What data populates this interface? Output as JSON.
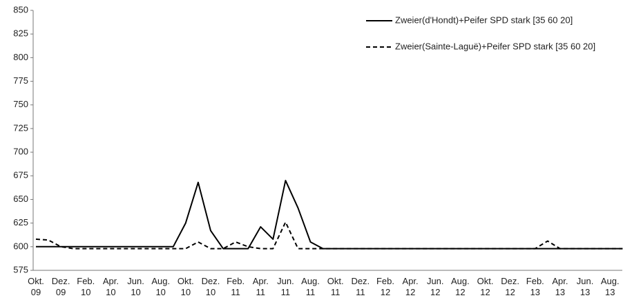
{
  "chart_data": {
    "type": "line",
    "categories": [
      "Okt. 09",
      null,
      "Dez. 09",
      null,
      "Feb. 10",
      null,
      "Apr. 10",
      null,
      "Jun. 10",
      null,
      "Aug. 10",
      null,
      "Okt. 10",
      null,
      "Dez. 10",
      null,
      "Feb. 11",
      null,
      "Apr. 11",
      null,
      "Jun. 11",
      null,
      "Aug. 11",
      null,
      "Okt. 11",
      null,
      "Dez. 11",
      null,
      "Feb. 12",
      null,
      "Apr. 12",
      null,
      "Jun. 12",
      null,
      "Aug. 12",
      null,
      "Okt. 12",
      null,
      "Dez. 12",
      null,
      "Feb. 13",
      null,
      "Apr. 13",
      null,
      "Jun. 13",
      null,
      "Aug. 13",
      null
    ],
    "series": [
      {
        "name": "Zweier(d'Hondt)+Peifer SPD stark [35 60 20]",
        "color": "#000000",
        "dash": "solid",
        "values": [
          600,
          600,
          600,
          600,
          600,
          600,
          600,
          600,
          600,
          600,
          600,
          600,
          625,
          668,
          617,
          598,
          598,
          598,
          621,
          608,
          670,
          641,
          605,
          598,
          598,
          598,
          598,
          598,
          598,
          598,
          598,
          598,
          598,
          598,
          598,
          598,
          598,
          598,
          598,
          598,
          598,
          598,
          598,
          598,
          598,
          598,
          598,
          598
        ]
      },
      {
        "name": "Zweier(Sainte-Laguë)+Peifer SPD stark [35 60 20]",
        "color": "#000000",
        "dash": "dashed",
        "values": [
          608,
          607,
          600,
          598,
          598,
          598,
          598,
          598,
          598,
          598,
          598,
          598,
          598,
          605,
          598,
          598,
          605,
          600,
          598,
          598,
          626,
          598,
          598,
          598,
          598,
          598,
          598,
          598,
          598,
          598,
          598,
          598,
          598,
          598,
          598,
          598,
          598,
          598,
          598,
          598,
          598,
          606,
          598,
          598,
          598,
          598,
          598,
          598
        ]
      }
    ],
    "ylim": [
      575,
      850
    ],
    "yticks": [
      575,
      600,
      625,
      650,
      675,
      700,
      725,
      750,
      775,
      800,
      825,
      850
    ],
    "grid": false,
    "legend": "top-right"
  }
}
